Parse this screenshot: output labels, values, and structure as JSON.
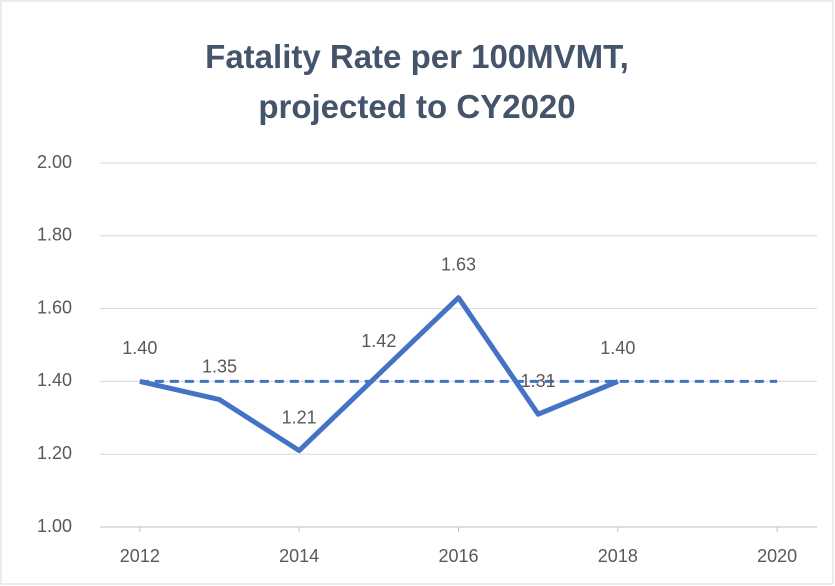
{
  "chart_data": {
    "type": "line",
    "title": "Fatality Rate per 100MVMT, projected to CY2020",
    "x": [
      2012,
      2013,
      2014,
      2015,
      2016,
      2017,
      2018,
      2019,
      2020
    ],
    "series": [
      {
        "color": "#4472c4",
        "dashed": false,
        "values": [
          1.4,
          1.35,
          1.21,
          1.42,
          1.63,
          1.31,
          1.4,
          null,
          null
        ],
        "value_labels": [
          "1.40",
          "1.35",
          "1.21",
          "1.42",
          "1.63",
          "1.31",
          "1.40",
          null,
          null
        ]
      },
      {
        "color": "#4472c4",
        "dashed": true,
        "values": [
          1.4,
          1.4,
          1.4,
          1.4,
          1.4,
          1.4,
          1.4,
          1.4,
          1.4
        ]
      }
    ],
    "xlim": [
      2011.5,
      2020.5
    ],
    "xticks": [
      2012,
      2014,
      2016,
      2018,
      2020
    ],
    "ylim": [
      1,
      2
    ],
    "yticks": [
      {
        "value": 1,
        "label": "1.00"
      },
      {
        "value": 1.2,
        "label": "1.20"
      },
      {
        "value": 1.4,
        "label": "1.40"
      },
      {
        "value": 1.6,
        "label": "1.60"
      },
      {
        "value": 1.8,
        "label": "1.80"
      },
      {
        "value": 2,
        "label": "2.00"
      }
    ],
    "grid": true
  }
}
